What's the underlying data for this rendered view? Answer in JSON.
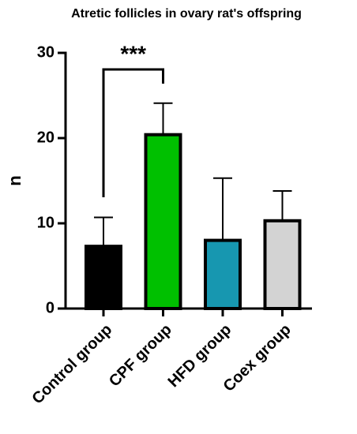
{
  "chart_data": {
    "type": "bar",
    "title": "Atretic follicles in ovary rat's offspring",
    "ylabel": "n",
    "categories": [
      "Control group",
      "CPF group",
      "HFD group",
      "Coex group"
    ],
    "values": [
      7.3,
      20.4,
      8.0,
      10.3
    ],
    "errors": [
      3.4,
      3.7,
      7.3,
      3.5
    ],
    "colors": [
      "#000000",
      "#00c000",
      "#1797b0",
      "#d3d3d3"
    ],
    "ylim": [
      0,
      30
    ],
    "yticks": [
      0,
      10,
      20,
      30
    ],
    "annotation": "***"
  }
}
